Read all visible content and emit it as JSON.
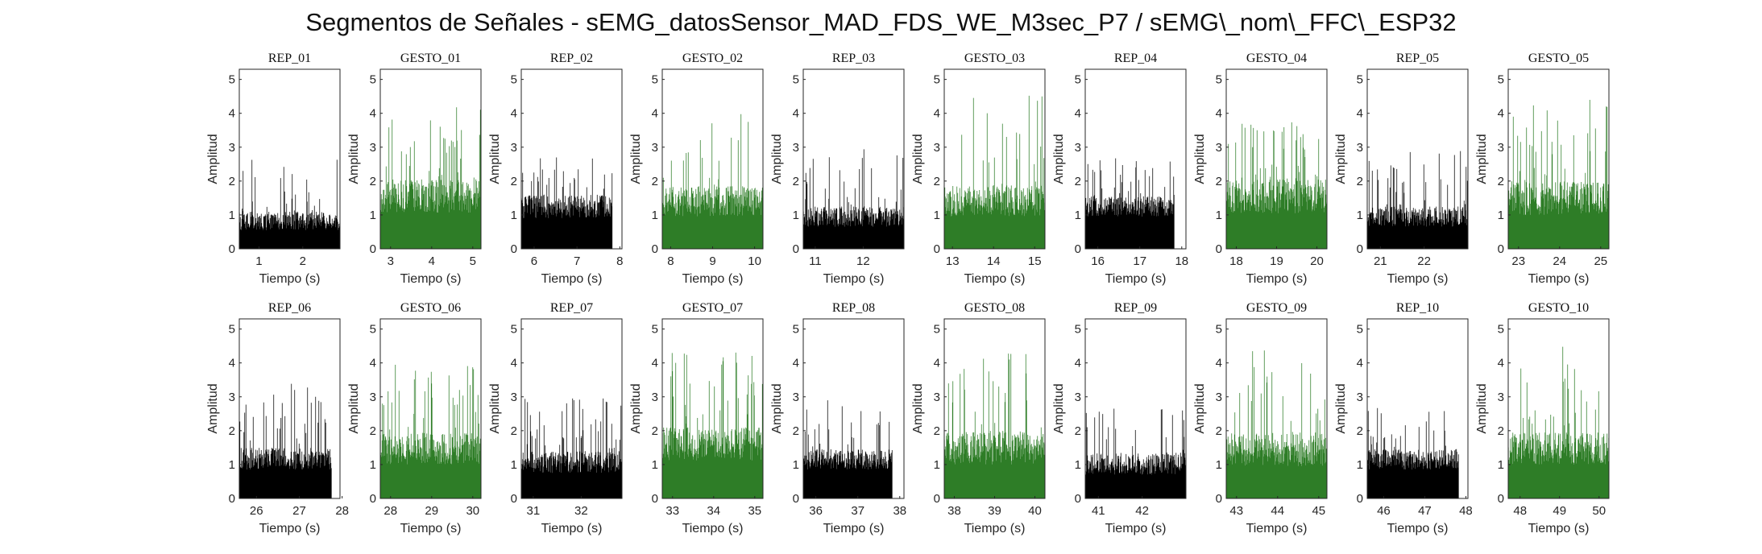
{
  "title": "Segmentos de Señales - sEMG_datosSensor_MAD_FDS_WE_M3sec_P7 / sEMG\\_nom\\_FFC\\_ESP32",
  "chart_data": {
    "type": "area",
    "layout": "2 rows x 10 panels",
    "xlabel": "Tiempo (s)",
    "ylabel": "Amplitud",
    "ylim": [
      0,
      5.3
    ],
    "yticks": [
      0,
      1,
      2,
      3,
      4,
      5
    ],
    "colors": {
      "rep": "#000000",
      "gesto": "#2e7d27"
    },
    "panels": [
      {
        "title": "REP_01",
        "kind": "rep",
        "xlim": [
          0.55,
          2.85
        ],
        "xticks": [
          1,
          2
        ],
        "data_end": 2.85,
        "base": 0.55,
        "spread": 0.55,
        "peak": 2.7,
        "seed": 11
      },
      {
        "title": "GESTO_01",
        "kind": "gesto",
        "xlim": [
          2.75,
          5.2
        ],
        "xticks": [
          3,
          4,
          5
        ],
        "data_end": 5.2,
        "base": 1.05,
        "spread": 1.0,
        "peak": 4.2,
        "seed": 12
      },
      {
        "title": "REP_02",
        "kind": "rep",
        "xlim": [
          5.7,
          8.05
        ],
        "xticks": [
          6,
          7,
          8
        ],
        "data_end": 7.82,
        "base": 0.9,
        "spread": 0.7,
        "peak": 2.8,
        "seed": 13
      },
      {
        "title": "GESTO_02",
        "kind": "gesto",
        "xlim": [
          7.8,
          10.2
        ],
        "xticks": [
          8,
          9,
          10
        ],
        "data_end": 10.2,
        "base": 0.95,
        "spread": 0.9,
        "peak": 4.2,
        "seed": 14
      },
      {
        "title": "REP_03",
        "kind": "rep",
        "xlim": [
          10.75,
          12.85
        ],
        "xticks": [
          11,
          12
        ],
        "data_end": 12.85,
        "base": 0.65,
        "spread": 0.6,
        "peak": 3.0,
        "seed": 15
      },
      {
        "title": "GESTO_03",
        "kind": "gesto",
        "xlim": [
          12.8,
          15.25
        ],
        "xticks": [
          13,
          14,
          15
        ],
        "data_end": 15.25,
        "base": 0.95,
        "spread": 0.95,
        "peak": 4.65,
        "seed": 16
      },
      {
        "title": "REP_04",
        "kind": "rep",
        "xlim": [
          15.7,
          18.1
        ],
        "xticks": [
          16,
          17,
          18
        ],
        "data_end": 17.82,
        "base": 0.95,
        "spread": 0.6,
        "peak": 2.8,
        "seed": 17
      },
      {
        "title": "GESTO_04",
        "kind": "gesto",
        "xlim": [
          17.75,
          20.25
        ],
        "xticks": [
          18,
          19,
          20
        ],
        "data_end": 20.25,
        "base": 1.05,
        "spread": 1.0,
        "peak": 3.8,
        "seed": 18
      },
      {
        "title": "REP_05",
        "kind": "rep",
        "xlim": [
          20.7,
          23.0
        ],
        "xticks": [
          21,
          22
        ],
        "data_end": 23.0,
        "base": 0.65,
        "spread": 0.6,
        "peak": 2.9,
        "seed": 19
      },
      {
        "title": "GESTO_05",
        "kind": "gesto",
        "xlim": [
          22.75,
          25.2
        ],
        "xticks": [
          23,
          24,
          25
        ],
        "data_end": 25.2,
        "base": 1.0,
        "spread": 1.0,
        "peak": 4.5,
        "seed": 20
      },
      {
        "title": "REP_06",
        "kind": "rep",
        "xlim": [
          25.6,
          27.95
        ],
        "xticks": [
          26,
          27,
          28
        ],
        "data_end": 27.75,
        "base": 0.85,
        "spread": 0.65,
        "peak": 3.4,
        "seed": 21
      },
      {
        "title": "GESTO_06",
        "kind": "gesto",
        "xlim": [
          27.75,
          30.2
        ],
        "xticks": [
          28,
          29,
          30
        ],
        "data_end": 30.2,
        "base": 1.0,
        "spread": 0.95,
        "peak": 4.05,
        "seed": 22
      },
      {
        "title": "REP_07",
        "kind": "rep",
        "xlim": [
          30.75,
          32.85
        ],
        "xticks": [
          31,
          32
        ],
        "data_end": 32.85,
        "base": 0.75,
        "spread": 0.65,
        "peak": 3.1,
        "seed": 23
      },
      {
        "title": "GESTO_07",
        "kind": "gesto",
        "xlim": [
          32.75,
          35.2
        ],
        "xticks": [
          33,
          34,
          35
        ],
        "data_end": 35.2,
        "base": 1.1,
        "spread": 1.0,
        "peak": 4.4,
        "seed": 24
      },
      {
        "title": "REP_08",
        "kind": "rep",
        "xlim": [
          35.7,
          38.1
        ],
        "xticks": [
          36,
          37,
          38
        ],
        "data_end": 37.82,
        "base": 0.85,
        "spread": 0.6,
        "peak": 2.9,
        "seed": 25
      },
      {
        "title": "GESTO_08",
        "kind": "gesto",
        "xlim": [
          37.75,
          40.25
        ],
        "xticks": [
          38,
          39,
          40
        ],
        "data_end": 40.25,
        "base": 1.0,
        "spread": 1.0,
        "peak": 4.35,
        "seed": 26
      },
      {
        "title": "REP_09",
        "kind": "rep",
        "xlim": [
          40.7,
          43.0
        ],
        "xticks": [
          41,
          42
        ],
        "data_end": 43.0,
        "base": 0.7,
        "spread": 0.65,
        "peak": 2.7,
        "seed": 27
      },
      {
        "title": "GESTO_09",
        "kind": "gesto",
        "xlim": [
          42.75,
          45.2
        ],
        "xticks": [
          43,
          44,
          45
        ],
        "data_end": 45.2,
        "base": 0.95,
        "spread": 1.0,
        "peak": 4.8,
        "seed": 28
      },
      {
        "title": "REP_10",
        "kind": "rep",
        "xlim": [
          45.6,
          48.05
        ],
        "xticks": [
          46,
          47,
          48
        ],
        "data_end": 47.82,
        "base": 0.85,
        "spread": 0.6,
        "peak": 2.7,
        "seed": 29
      },
      {
        "title": "GESTO_10",
        "kind": "gesto",
        "xlim": [
          47.7,
          50.25
        ],
        "xticks": [
          48,
          49,
          50
        ],
        "data_end": 50.25,
        "base": 1.0,
        "spread": 0.95,
        "peak": 4.6,
        "seed": 30
      }
    ]
  }
}
